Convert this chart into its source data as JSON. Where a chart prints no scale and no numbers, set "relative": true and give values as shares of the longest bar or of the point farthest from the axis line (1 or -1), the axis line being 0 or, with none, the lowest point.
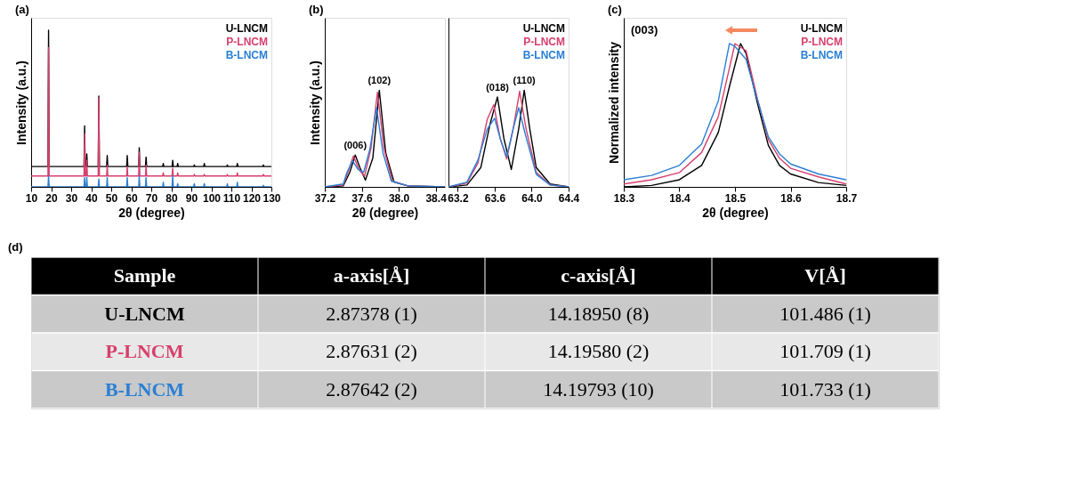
{
  "chart_data": [
    {
      "type": "line",
      "title": "(a)",
      "xlabel": "2θ (degree)",
      "ylabel": "Intensity (a.u.)",
      "relative": true,
      "legend": "top right",
      "grid": false,
      "marker": "none",
      "line_style": "solid",
      "xlim": [
        10,
        130
      ],
      "xticks": [
        10,
        20,
        30,
        40,
        50,
        60,
        70,
        80,
        90,
        100,
        110,
        120,
        130
      ],
      "x": [
        10,
        18.4,
        18.7,
        19.0,
        36.4,
        36.7,
        37.0,
        37.5,
        37.8,
        38.1,
        43.5,
        43.8,
        44.1,
        47.7,
        48.0,
        48.3,
        57.7,
        58.0,
        58.3,
        63.7,
        64.0,
        64.3,
        67.1,
        67.4,
        67.7,
        75.7,
        76.0,
        76.3,
        80.4,
        80.7,
        81.0,
        82.9,
        83.2,
        83.5,
        91.2,
        91.5,
        91.8,
        96.2,
        96.5,
        96.8,
        107.7,
        108.0,
        108.3,
        112.7,
        113.0,
        113.3,
        125.7,
        126.0,
        126.3,
        130
      ],
      "series": [
        {
          "name": "U-LNCM",
          "color": "#000000",
          "values": [
            0.13,
            0.13,
            1.0,
            0.13,
            0.13,
            0.39,
            0.13,
            0.13,
            0.21,
            0.13,
            0.13,
            0.58,
            0.13,
            0.13,
            0.2,
            0.13,
            0.13,
            0.2,
            0.13,
            0.13,
            0.25,
            0.13,
            0.13,
            0.19,
            0.13,
            0.13,
            0.15,
            0.13,
            0.13,
            0.17,
            0.13,
            0.13,
            0.15,
            0.13,
            0.13,
            0.14,
            0.13,
            0.13,
            0.15,
            0.13,
            0.13,
            0.14,
            0.13,
            0.13,
            0.15,
            0.13,
            0.13,
            0.14,
            0.13,
            0.13
          ]
        },
        {
          "name": "P-LNCM",
          "color": "#d6406d",
          "values": [
            0.07,
            0.07,
            0.89,
            0.07,
            0.07,
            0.34,
            0.07,
            0.07,
            0.17,
            0.07,
            0.07,
            0.57,
            0.07,
            0.07,
            0.14,
            0.07,
            0.07,
            0.13,
            0.07,
            0.07,
            0.22,
            0.07,
            0.07,
            0.14,
            0.07,
            0.07,
            0.09,
            0.07,
            0.07,
            0.12,
            0.07,
            0.07,
            0.09,
            0.07,
            0.07,
            0.08,
            0.07,
            0.07,
            0.08,
            0.07,
            0.07,
            0.08,
            0.07,
            0.07,
            0.09,
            0.07,
            0.07,
            0.08,
            0.07,
            0.07
          ]
        },
        {
          "name": "B-LNCM",
          "color": "#2a7fd4",
          "values": [
            0.0,
            0.0,
            0.07,
            0.0,
            0.0,
            0.06,
            0.0,
            0.0,
            0.06,
            0.0,
            0.0,
            0.05,
            0.0,
            0.0,
            0.06,
            0.0,
            0.0,
            0.06,
            0.0,
            0.0,
            0.07,
            0.0,
            0.0,
            0.06,
            0.0,
            0.0,
            0.03,
            0.0,
            0.0,
            0.07,
            0.0,
            0.0,
            0.02,
            0.0,
            0.0,
            0.02,
            0.0,
            0.0,
            0.02,
            0.0,
            0.0,
            0.02,
            0.0,
            0.0,
            0.03,
            0.0,
            0.0,
            0.01,
            0.0,
            0.0
          ]
        }
      ]
    },
    {
      "type": "line",
      "title": "(b)",
      "xlabel": "2θ (degree)",
      "ylabel": "Intensity (a.u.)",
      "relative": true,
      "grid": false,
      "marker": "none",
      "line_style": "solid",
      "xlim": [
        37.2,
        38.5
      ],
      "xticks": [
        37.2,
        37.6,
        {
          "value": 38,
          "label": "38.0"
        },
        38.4
      ],
      "annotations": [
        {
          "text": "(006)",
          "x": 37.53,
          "y": 0.33
        },
        {
          "text": "(102)",
          "x": 37.79,
          "y": 1.0
        }
      ],
      "series": [
        {
          "color": "#000000",
          "x": [
            37.2,
            37.4,
            37.47,
            37.53,
            37.58,
            37.64,
            37.72,
            37.79,
            37.86,
            37.95,
            38.1,
            38.5
          ],
          "values": [
            0,
            0.01,
            0.15,
            0.33,
            0.2,
            0.07,
            0.3,
            1.0,
            0.35,
            0.05,
            0.01,
            0
          ]
        },
        {
          "color": "#d6406d",
          "x": [
            37.2,
            37.4,
            37.45,
            37.51,
            37.57,
            37.63,
            37.7,
            37.77,
            37.84,
            37.93,
            38.1,
            38.5
          ],
          "values": [
            0,
            0.02,
            0.15,
            0.32,
            0.18,
            0.11,
            0.4,
            0.98,
            0.4,
            0.06,
            0.01,
            0
          ]
        },
        {
          "color": "#2a7fd4",
          "x": [
            37.2,
            37.4,
            37.44,
            37.5,
            37.56,
            37.62,
            37.69,
            37.76,
            37.83,
            37.92,
            38.1,
            38.5
          ],
          "values": [
            0,
            0.03,
            0.15,
            0.27,
            0.18,
            0.15,
            0.4,
            0.82,
            0.35,
            0.06,
            0.01,
            0
          ]
        }
      ]
    },
    {
      "type": "line",
      "relative": true,
      "legend": "top right",
      "grid": false,
      "marker": "none",
      "line_style": "solid",
      "xlim": [
        63.1,
        64.4
      ],
      "xticks": [
        63.2,
        63.6,
        {
          "value": 64,
          "label": "64.0"
        },
        64.4
      ],
      "annotations": [
        {
          "text": "(018)",
          "x": 63.63,
          "y": 0.93
        },
        {
          "text": "(110)",
          "x": 63.92,
          "y": 1.0
        }
      ],
      "series": [
        {
          "name": "U-LNCM",
          "color": "#000000",
          "x": [
            63.1,
            63.3,
            63.45,
            63.55,
            63.63,
            63.7,
            63.78,
            63.86,
            63.92,
            63.98,
            64.05,
            64.2,
            64.4
          ],
          "values": [
            0,
            0.02,
            0.2,
            0.65,
            0.93,
            0.5,
            0.18,
            0.6,
            1.0,
            0.6,
            0.2,
            0.03,
            0
          ]
        },
        {
          "name": "P-LNCM",
          "color": "#d6406d",
          "x": [
            63.1,
            63.3,
            63.42,
            63.52,
            63.59,
            63.66,
            63.73,
            63.8,
            63.87,
            63.94,
            64.05,
            64.2,
            64.4
          ],
          "values": [
            0,
            0.04,
            0.25,
            0.7,
            0.85,
            0.5,
            0.29,
            0.6,
            0.99,
            0.6,
            0.15,
            0.02,
            0
          ]
        },
        {
          "name": "B-LNCM",
          "color": "#2a7fd4",
          "x": [
            63.1,
            63.3,
            63.42,
            63.52,
            63.6,
            63.66,
            63.73,
            63.8,
            63.86,
            63.93,
            64.05,
            64.2,
            64.4
          ],
          "values": [
            0,
            0.05,
            0.28,
            0.6,
            0.71,
            0.5,
            0.31,
            0.6,
            0.82,
            0.55,
            0.13,
            0.02,
            0
          ]
        }
      ]
    },
    {
      "type": "line",
      "title": "(c)",
      "xlabel": "2θ (degree)",
      "ylabel": "Normalized intensity",
      "relative": true,
      "legend": "top right",
      "grid": false,
      "marker": "none",
      "line_style": "solid",
      "xlim": [
        18.3,
        18.7
      ],
      "xticks": [
        18.3,
        18.4,
        18.5,
        18.6,
        18.7
      ],
      "annotations": [
        "(003)"
      ],
      "series": [
        {
          "name": "U-LNCM",
          "color": "#000000",
          "x": [
            18.3,
            18.35,
            18.4,
            18.44,
            18.47,
            18.49,
            18.51,
            18.52,
            18.54,
            18.56,
            18.58,
            18.6,
            18.65,
            18.7
          ],
          "values": [
            0,
            0.01,
            0.05,
            0.15,
            0.38,
            0.7,
            1.0,
            0.93,
            0.59,
            0.29,
            0.15,
            0.09,
            0.03,
            0.01
          ]
        },
        {
          "name": "P-LNCM",
          "color": "#d6406d",
          "x": [
            18.3,
            18.35,
            18.4,
            18.44,
            18.47,
            18.49,
            18.5,
            18.52,
            18.54,
            18.56,
            18.58,
            18.6,
            18.65,
            18.7
          ],
          "values": [
            0.02,
            0.05,
            0.1,
            0.24,
            0.49,
            0.83,
            1.0,
            0.95,
            0.62,
            0.33,
            0.2,
            0.13,
            0.07,
            0.02
          ]
        },
        {
          "name": "B-LNCM",
          "color": "#2a7fd4",
          "x": [
            18.3,
            18.35,
            18.4,
            18.44,
            18.47,
            18.49,
            18.5,
            18.52,
            18.54,
            18.56,
            18.58,
            18.6,
            18.65,
            18.7
          ],
          "values": [
            0.05,
            0.08,
            0.15,
            0.3,
            0.6,
            1.0,
            0.98,
            0.89,
            0.61,
            0.35,
            0.23,
            0.16,
            0.09,
            0.05
          ]
        }
      ]
    },
    {
      "type": "other",
      "title": "(d)",
      "ylabel": "Sample",
      "categories": [
        "a-axis[Å]",
        "c-axis[Å]",
        "V[Å]"
      ],
      "y_categories": [
        "U-LNCM",
        "P-LNCM",
        "B-LNCM"
      ],
      "cell_labels": [
        [
          "2.87378 (1)",
          "14.18950 (8)",
          "101.486 (1)"
        ],
        [
          "2.87631 (2)",
          "14.19580 (2)",
          "101.709 (1)"
        ],
        [
          "2.87642 (2)",
          "14.19793 (10)",
          "101.733 (1)"
        ]
      ]
    }
  ]
}
